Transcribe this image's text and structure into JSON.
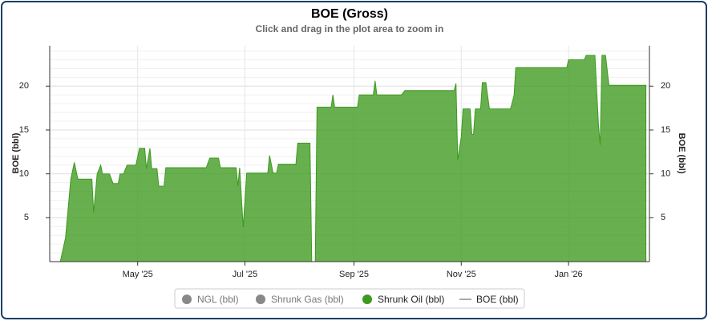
{
  "chart_data": {
    "type": "area",
    "title": "BOE (Gross)",
    "subtitle": "Click and drag in the plot area to zoom in",
    "y_label": "BOE (bbl)",
    "y2_label": "BOE (bbl)",
    "x": [
      -50,
      -44,
      -41,
      -38,
      -36,
      -34,
      -26,
      -25,
      -23,
      -21,
      -20,
      -16,
      -14,
      -11,
      -10,
      -8,
      -6,
      -1,
      1,
      4,
      5,
      7,
      8,
      11,
      12,
      15,
      16,
      39,
      41,
      46,
      47,
      56,
      57,
      58,
      60,
      62,
      74,
      75,
      77,
      79,
      80,
      90,
      91,
      98,
      99,
      101,
      102,
      110,
      111,
      112,
      125,
      126,
      134,
      135,
      136,
      150,
      152,
      180,
      181,
      182,
      184,
      185,
      189,
      190,
      191,
      192,
      195,
      196,
      198,
      200,
      212,
      214,
      215,
      244,
      245,
      254,
      255,
      260,
      262,
      263,
      264,
      266,
      268,
      289
    ],
    "series": [
      {
        "name": "Shrunk Oil (bbl)",
        "color": "#3d9a1e",
        "values": [
          0,
          0,
          2.7,
          9.4,
          11.3,
          9.4,
          9.4,
          5.6,
          10.0,
          11.0,
          10.0,
          10.0,
          8.9,
          8.9,
          10.0,
          10.0,
          11.0,
          11.0,
          12.9,
          12.9,
          10.6,
          12.9,
          10.6,
          10.6,
          8.6,
          8.6,
          10.7,
          10.7,
          11.8,
          11.8,
          10.7,
          10.7,
          8.6,
          10.7,
          3.9,
          10.1,
          10.1,
          12.1,
          10.1,
          10.1,
          11.1,
          11.1,
          13.5,
          13.5,
          0,
          0,
          17.6,
          17.6,
          19.0,
          17.6,
          17.6,
          19.0,
          19.0,
          20.6,
          19.0,
          19.0,
          19.5,
          19.5,
          20.3,
          11.6,
          14.2,
          17.4,
          17.4,
          14.5,
          14.5,
          17.4,
          17.4,
          20.4,
          20.4,
          17.4,
          17.4,
          18.9,
          22.1,
          22.1,
          23.0,
          23.0,
          23.5,
          23.5,
          15.6,
          13.3,
          23.5,
          23.5,
          20.1,
          20.1
        ]
      }
    ],
    "legend_items": [
      {
        "name": "NGL (bbl)",
        "color": "#888888",
        "marker": "circle"
      },
      {
        "name": "Shrunk Gas (bbl)",
        "color": "#888888",
        "marker": "circle"
      },
      {
        "name": "Shrunk Oil (bbl)",
        "color": "#3d9a1e",
        "marker": "circle"
      },
      {
        "name": "BOE (bbl)",
        "color": "#aaaaaa",
        "marker": "line"
      }
    ],
    "xlim": [
      -50,
      291
    ],
    "xticks": [
      {
        "value": 0,
        "label": "May '25"
      },
      {
        "value": 61,
        "label": "Jul '25"
      },
      {
        "value": 123,
        "label": "Sep '25"
      },
      {
        "value": 184,
        "label": "Nov '25"
      },
      {
        "value": 245,
        "label": "Jan '26"
      }
    ],
    "ylim": [
      0,
      24.6
    ],
    "yticks": [
      5,
      10,
      15,
      20
    ],
    "y2lim": [
      0,
      24.6
    ],
    "y2ticks": [
      5,
      10,
      15,
      20
    ],
    "grid": true
  }
}
